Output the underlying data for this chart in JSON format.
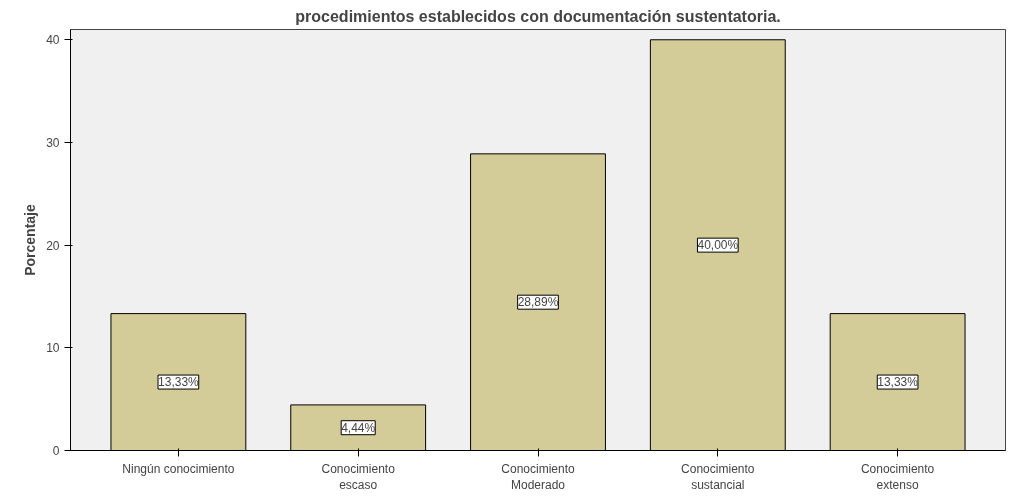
{
  "chart_data": {
    "type": "bar",
    "title": "procedimientos establecidos con documentación sustentatoria.",
    "ylabel": "Porcentaje",
    "categories": [
      "Ningún conocimiento",
      "Conocimiento\nescaso",
      "Conocimiento\nModerado",
      "Conocimiento\nsustancial",
      "Conocimiento\nextenso"
    ],
    "values": [
      13.33,
      4.44,
      28.89,
      40.0,
      13.33
    ],
    "value_labels": [
      "13,33%",
      "4,44%",
      "28,89%",
      "40,00%",
      "13,33%"
    ],
    "color": "#d4cc98",
    "ylim": [
      0,
      41
    ],
    "yticks": [
      0,
      10,
      20,
      30,
      40
    ],
    "grid": false
  }
}
